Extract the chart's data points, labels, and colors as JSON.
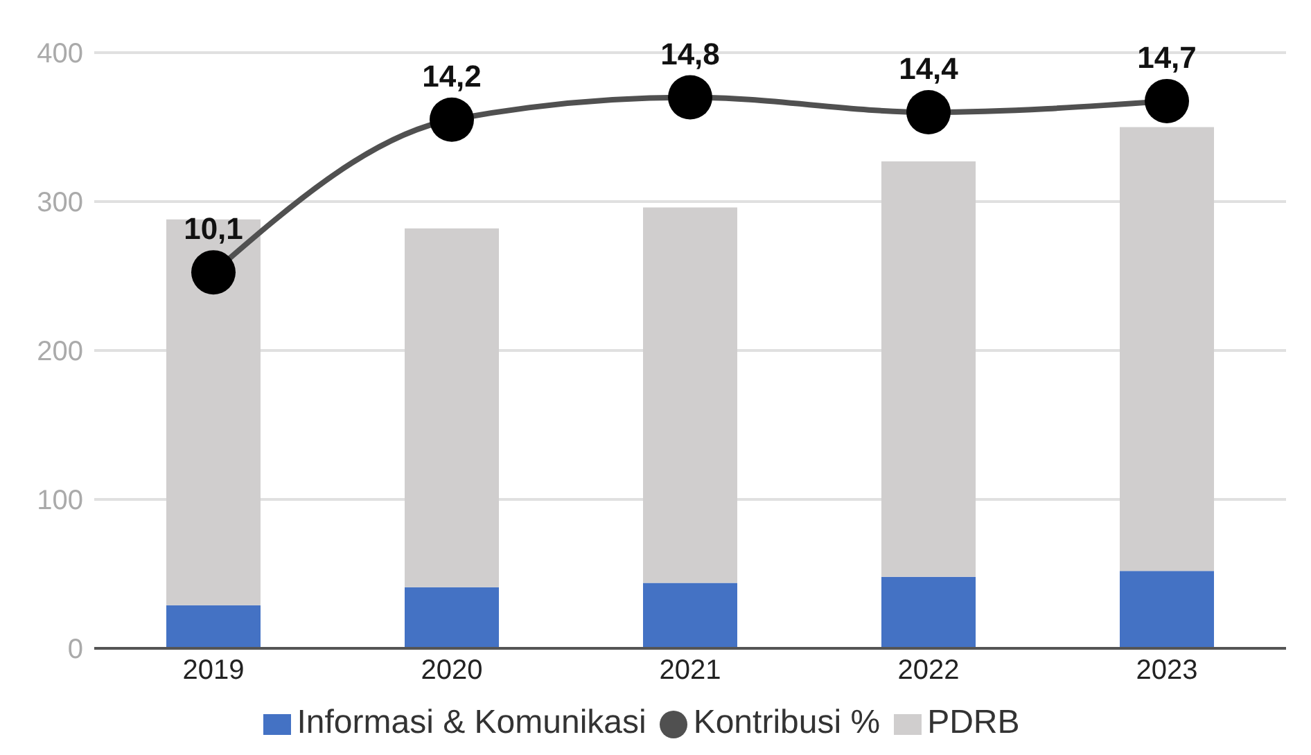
{
  "chart_data": {
    "type": "bar",
    "categories": [
      "2019",
      "2020",
      "2021",
      "2022",
      "2023"
    ],
    "stacked": true,
    "series": [
      {
        "name": "Informasi & Komunikasi",
        "color": "#4472c4",
        "values": [
          29,
          41,
          44,
          48,
          52
        ]
      },
      {
        "name": "PDRB",
        "color": "#d0cece",
        "values": [
          259,
          241,
          252,
          279,
          298
        ]
      },
      {
        "name": "Kontribusi %",
        "type": "line",
        "axis": "y2",
        "color": "#505050",
        "values": [
          10.1,
          14.2,
          14.8,
          14.4,
          14.7
        ],
        "value_labels": [
          "10,1",
          "14,2",
          "14,8",
          "14,4",
          "14,7"
        ]
      }
    ],
    "ylim": [
      0,
      400
    ],
    "yticks": [
      0,
      100,
      200,
      300,
      400
    ],
    "grid": "y",
    "legend": "bottom",
    "marker": "circle"
  }
}
